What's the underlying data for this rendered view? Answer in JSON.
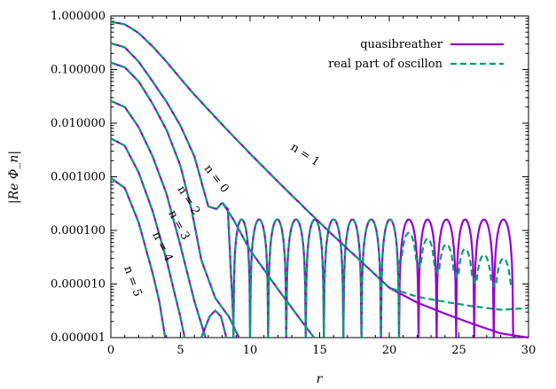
{
  "chart_data": {
    "type": "line",
    "title": "",
    "xlabel": "r",
    "ylabel": "|Re Φ_n|",
    "xlim": [
      0,
      30
    ],
    "ylim": [
      1e-06,
      1.0
    ],
    "yscale": "log",
    "xticks": [
      "0",
      "5",
      "10",
      "15",
      "20",
      "25",
      "30"
    ],
    "yticks": [
      "0.000001",
      "0.000010",
      "0.000100",
      "0.001000",
      "0.010000",
      "0.100000",
      "1.000000"
    ],
    "legend": {
      "placement": "top-right",
      "entries": [
        {
          "label": "quasibreather",
          "color": "#9400d3",
          "style": "solid"
        },
        {
          "label": "real part of oscillon",
          "color": "#009e73",
          "style": "dashed"
        }
      ]
    },
    "curve_labels": [
      "n = 0",
      "n = 1",
      "n = 2",
      "n = 3",
      "n = 4",
      "n = 5"
    ],
    "series": [
      {
        "label_index": 1,
        "x": [
          0,
          1,
          2,
          3,
          4,
          5,
          6,
          8,
          10,
          12,
          14,
          16,
          18,
          20,
          22,
          24,
          26,
          28,
          30
        ],
        "y": [
          0.78,
          0.7,
          0.48,
          0.27,
          0.14,
          0.068,
          0.034,
          0.0094,
          0.0027,
          0.00081,
          0.00025,
          7.9e-05,
          2.6e-05,
          8.5e-06,
          4.5e-06,
          2.8e-06,
          1.8e-06,
          1.2e-06,
          1e-06
        ]
      },
      {
        "label_index": 0,
        "x": [
          0,
          1,
          2,
          3,
          4,
          5,
          6,
          7,
          7.6,
          8,
          8.8,
          10,
          12,
          14,
          14.6
        ],
        "y": [
          0.31,
          0.26,
          0.14,
          0.06,
          0.025,
          0.009,
          0.0024,
          0.00028,
          0.00025,
          0.00033,
          0.00016,
          4.3e-05,
          8e-06,
          1.6e-06,
          1e-06
        ]
      },
      {
        "label_index": 2,
        "x": [
          0,
          1,
          2,
          3,
          4,
          5,
          5.8,
          6.5,
          7.5,
          8.5,
          9.2
        ],
        "y": [
          0.135,
          0.11,
          0.06,
          0.023,
          0.0075,
          0.0016,
          0.00024,
          2.8e-05,
          5.5e-06,
          2.4e-06,
          1e-06
        ]
      },
      {
        "label_index": 3,
        "x": [
          0,
          1,
          2,
          3,
          4,
          5,
          6,
          6.8
        ],
        "y": [
          0.026,
          0.02,
          0.0084,
          0.0024,
          0.00048,
          5.2e-05,
          4.8e-06,
          1e-06
        ]
      },
      {
        "label_index": 4,
        "x": [
          0,
          1,
          2,
          3,
          4,
          5,
          5.3
        ],
        "y": [
          0.0052,
          0.0038,
          0.0012,
          0.00023,
          2.8e-05,
          2.4e-06,
          1e-06
        ]
      },
      {
        "label_index": 5,
        "x": [
          0,
          1,
          2,
          3,
          3.5,
          3.9
        ],
        "y": [
          0.00095,
          0.00062,
          0.00014,
          1.6e-05,
          4.5e-06,
          1e-06
        ]
      }
    ],
    "oscillating_tail": {
      "zeros": [
        8.8,
        10.0,
        11.3,
        12.6,
        14.0,
        15.3,
        16.7,
        18.0,
        19.4,
        20.7,
        22.1,
        23.4,
        24.8,
        26.1,
        27.5,
        28.9
      ],
      "quasibreather_peak": 0.00016,
      "oscillon_peak_after_20": [
        9e-05,
        7e-05,
        5.5e-05,
        4.5e-05,
        3.5e-05,
        3e-05,
        2.5e-05
      ]
    }
  }
}
